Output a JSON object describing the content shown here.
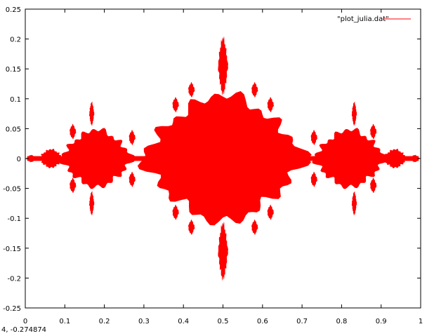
{
  "status": {
    "coords": "4, -0.274874"
  },
  "chart_data": {
    "type": "scatter",
    "title": "",
    "xlabel": "",
    "ylabel": "",
    "xlim": [
      0,
      1
    ],
    "ylim": [
      -0.25,
      0.25
    ],
    "x_ticks": [
      0,
      0.1,
      0.2,
      0.3,
      0.4,
      0.5,
      0.6,
      0.7,
      0.8,
      0.9,
      1
    ],
    "x_tick_labels": [
      "0",
      "0.1",
      "0.2",
      "0.3",
      "0.4",
      "0.5",
      "0.6",
      "0.7",
      "0.8",
      "0.9",
      "1"
    ],
    "y_ticks": [
      -0.25,
      -0.2,
      -0.15,
      -0.1,
      -0.05,
      0,
      0.05,
      0.1,
      0.15,
      0.2,
      0.25
    ],
    "y_tick_labels": [
      "-0.25",
      "-0.2",
      "-0.15",
      "-0.1",
      "-0.05",
      "0",
      "0.05",
      "0.1",
      "0.15",
      "0.2",
      "0.25"
    ],
    "grid": false,
    "legend": {
      "placement": "top-right",
      "entries": [
        "\"plot_julia.dat\""
      ]
    },
    "series": [
      {
        "name": "\"plot_julia.dat\"",
        "color": "#ff0000",
        "description_shape": "filled fractal region symmetric about y=0 and x=0.5",
        "lobes": [
          {
            "cx": 0.5,
            "cy": 0,
            "rx": 0.205,
            "ry": 0.11
          },
          {
            "cx": 0.5,
            "cy": 0.155,
            "rx": 0.012,
            "ry": 0.048
          },
          {
            "cx": 0.5,
            "cy": -0.155,
            "rx": 0.012,
            "ry": 0.048
          },
          {
            "cx": 0.18,
            "cy": 0,
            "rx": 0.09,
            "ry": 0.05
          },
          {
            "cx": 0.82,
            "cy": 0,
            "rx": 0.09,
            "ry": 0.05
          },
          {
            "cx": 0.168,
            "cy": 0.075,
            "rx": 0.006,
            "ry": 0.02
          },
          {
            "cx": 0.168,
            "cy": -0.075,
            "rx": 0.006,
            "ry": 0.02
          },
          {
            "cx": 0.832,
            "cy": 0.075,
            "rx": 0.006,
            "ry": 0.02
          },
          {
            "cx": 0.832,
            "cy": -0.075,
            "rx": 0.006,
            "ry": 0.02
          },
          {
            "cx": 0.065,
            "cy": 0,
            "rx": 0.03,
            "ry": 0.016
          },
          {
            "cx": 0.935,
            "cy": 0,
            "rx": 0.03,
            "ry": 0.016
          },
          {
            "cx": 0.015,
            "cy": 0,
            "rx": 0.012,
            "ry": 0.006
          },
          {
            "cx": 0.985,
            "cy": 0,
            "rx": 0.012,
            "ry": 0.006
          }
        ]
      }
    ]
  }
}
